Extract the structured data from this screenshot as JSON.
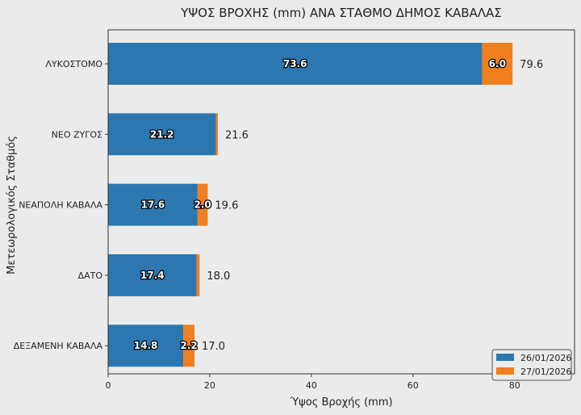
{
  "chart_data": {
    "type": "bar",
    "orientation": "horizontal",
    "stacked": true,
    "title": "ΥΨΟΣ ΒΡΟΧΗΣ (mm) ΑΝΑ ΣΤΑΘΜΟ ΔΗΜΟΣ ΚΑΒΑΛΑΣ",
    "xlabel": "Ύψος Βροχής (mm)",
    "ylabel": "Μετεωρολογικός Σταθμός",
    "categories": [
      "ΛΥΚΟΣΤΟΜΟ",
      "ΝΕΟ ΖΥΓΟΣ",
      "ΝΕΑΠΟΛΗ ΚΑΒΑΛΑ",
      "ΔΑΤΟ",
      "ΔΕΞΑΜΕΝΗ ΚΑΒΑΛΑ"
    ],
    "series": [
      {
        "name": "26/01/2026",
        "color": "#2c77b0",
        "values": [
          73.6,
          21.2,
          17.6,
          17.4,
          14.8
        ],
        "labels": [
          "73.6",
          "21.2",
          "17.6",
          "17.4",
          "14.8"
        ]
      },
      {
        "name": "27/01/2026",
        "color": "#f07f20",
        "values": [
          6.0,
          0.4,
          2.0,
          0.6,
          2.2
        ],
        "labels": [
          "6.0",
          "",
          "2.0",
          "",
          "2.2"
        ]
      }
    ],
    "totals": [
      "79.6",
      "21.6",
      "19.6",
      "18.0",
      "17.0"
    ],
    "xlim": [
      0,
      91.8
    ],
    "xticks": [
      0,
      20,
      40,
      60,
      80
    ],
    "xtick_labels": [
      "0",
      "20",
      "40",
      "60",
      "80"
    ],
    "legend_placement": "lower-right",
    "grid": false
  }
}
